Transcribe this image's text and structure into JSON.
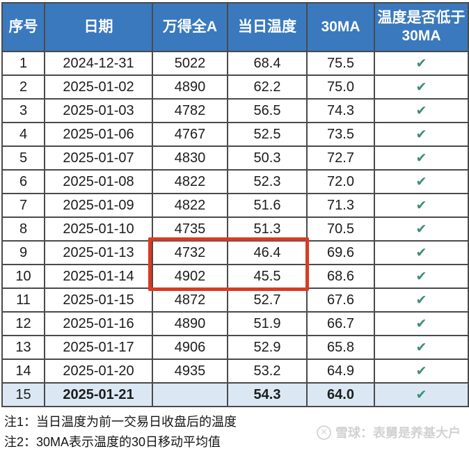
{
  "table": {
    "columns": [
      {
        "label": "序号"
      },
      {
        "label": "日期"
      },
      {
        "label": "万得全A"
      },
      {
        "label": "当日温度"
      },
      {
        "label": "30MA"
      },
      {
        "label": "温度是否低于30MA"
      }
    ],
    "rows": [
      {
        "no": "1",
        "date": "2024-12-31",
        "wind": "5022",
        "temp": "68.4",
        "ma30": "75.5",
        "below": true
      },
      {
        "no": "2",
        "date": "2025-01-02",
        "wind": "4890",
        "temp": "62.2",
        "ma30": "75.0",
        "below": true
      },
      {
        "no": "3",
        "date": "2025-01-03",
        "wind": "4782",
        "temp": "56.5",
        "ma30": "74.3",
        "below": true
      },
      {
        "no": "4",
        "date": "2025-01-06",
        "wind": "4767",
        "temp": "52.5",
        "ma30": "73.5",
        "below": true
      },
      {
        "no": "5",
        "date": "2025-01-07",
        "wind": "4830",
        "temp": "50.3",
        "ma30": "72.7",
        "below": true
      },
      {
        "no": "6",
        "date": "2025-01-08",
        "wind": "4822",
        "temp": "52.3",
        "ma30": "72.0",
        "below": true
      },
      {
        "no": "7",
        "date": "2025-01-09",
        "wind": "4822",
        "temp": "51.6",
        "ma30": "71.3",
        "below": true
      },
      {
        "no": "8",
        "date": "2025-01-10",
        "wind": "4735",
        "temp": "51.3",
        "ma30": "70.5",
        "below": true
      },
      {
        "no": "9",
        "date": "2025-01-13",
        "wind": "4732",
        "temp": "46.4",
        "ma30": "69.6",
        "below": true
      },
      {
        "no": "10",
        "date": "2025-01-14",
        "wind": "4902",
        "temp": "45.5",
        "ma30": "68.6",
        "below": true
      },
      {
        "no": "11",
        "date": "2025-01-15",
        "wind": "4872",
        "temp": "52.7",
        "ma30": "67.6",
        "below": true
      },
      {
        "no": "12",
        "date": "2025-01-16",
        "wind": "4890",
        "temp": "51.9",
        "ma30": "66.7",
        "below": true
      },
      {
        "no": "13",
        "date": "2025-01-17",
        "wind": "4906",
        "temp": "52.9",
        "ma30": "65.8",
        "below": true
      },
      {
        "no": "14",
        "date": "2025-01-20",
        "wind": "4935",
        "temp": "53.2",
        "ma30": "64.9",
        "below": true
      },
      {
        "no": "15",
        "date": "2025-01-21",
        "wind": "",
        "temp": "54.3",
        "ma30": "64.0",
        "below": true
      }
    ]
  },
  "icons": {
    "check": "✔",
    "logo_glyph": "✕"
  },
  "highlight": {
    "rows": [
      "9",
      "10"
    ],
    "columns": [
      "万得全A",
      "当日温度"
    ],
    "color": "#d93b22"
  },
  "notes": {
    "note1": "注1：当日温度为前一交易日收盘后的温度",
    "note2": "注2：30MA表示温度的30日移动平均值"
  },
  "watermark": {
    "text": "雪球：表舅是养基大户"
  },
  "colors": {
    "header_bg": "#3a79be",
    "header_text": "#ffffff",
    "summary_row_bg": "#dbe8f4",
    "check_green": "#3f8e76",
    "grid_line": "#4a4a4a",
    "highlight_red": "#d93b22"
  }
}
